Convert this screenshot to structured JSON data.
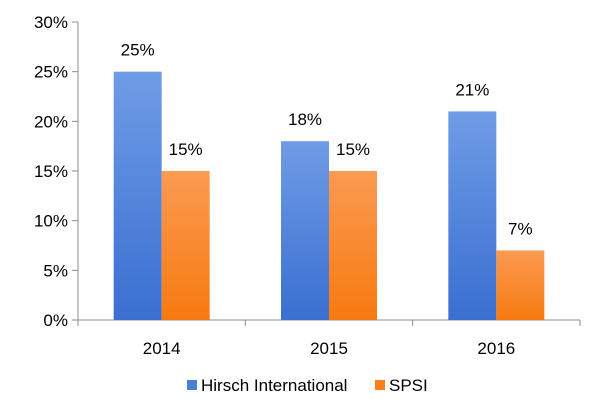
{
  "chart_data": {
    "type": "bar",
    "categories": [
      "2014",
      "2015",
      "2016"
    ],
    "series": [
      {
        "name": "Hirsch International",
        "values": [
          25,
          18,
          21
        ],
        "labels": [
          "25%",
          "18%",
          "21%"
        ],
        "color": "#4a7fd6"
      },
      {
        "name": "SPSI",
        "values": [
          15,
          15,
          7
        ],
        "labels": [
          "15%",
          "15%",
          "7%"
        ],
        "color": "#f97f1c"
      }
    ],
    "title": "",
    "xlabel": "",
    "ylabel": "",
    "ylim": [
      0,
      30
    ],
    "yticks": [
      0,
      5,
      10,
      15,
      20,
      25,
      30
    ],
    "ytick_labels": [
      "0%",
      "5%",
      "10%",
      "15%",
      "20%",
      "25%",
      "30%"
    ],
    "grid": false,
    "legend_position": "bottom"
  }
}
